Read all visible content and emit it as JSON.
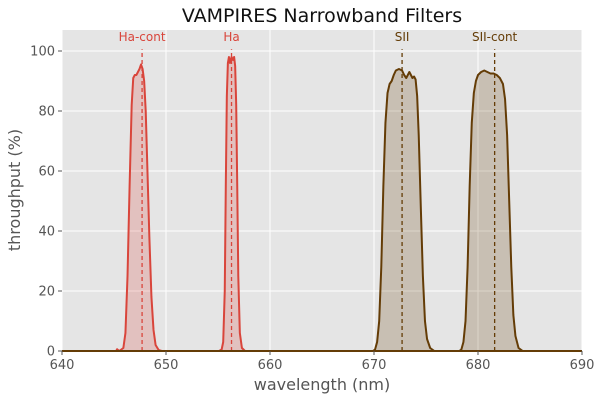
{
  "chart_data": {
    "type": "area",
    "title": "VAMPIRES Narrowband Filters",
    "xlabel": "wavelength (nm)",
    "ylabel": "throughput (%)",
    "xlim": [
      640,
      690
    ],
    "ylim": [
      0,
      107
    ],
    "xticks": [
      640,
      650,
      660,
      670,
      680,
      690
    ],
    "yticks": [
      0,
      20,
      40,
      60,
      80,
      100
    ],
    "grid": true,
    "legend": "none",
    "colors": {
      "background": "#e5e5e5",
      "grid": "#ffffff",
      "red": "#d9453b",
      "brown": "#643c06"
    },
    "series": [
      {
        "label": "Ha-cont",
        "color": "red",
        "center": 647.7,
        "points": [
          [
            640,
            0
          ],
          [
            645.2,
            0
          ],
          [
            645.3,
            0.6
          ],
          [
            645.5,
            0
          ],
          [
            645.9,
            1
          ],
          [
            646.1,
            6
          ],
          [
            646.3,
            25
          ],
          [
            646.5,
            55
          ],
          [
            646.7,
            82
          ],
          [
            646.85,
            91
          ],
          [
            647.0,
            92
          ],
          [
            647.15,
            92
          ],
          [
            647.3,
            93
          ],
          [
            647.45,
            94
          ],
          [
            647.6,
            95.5
          ],
          [
            647.75,
            94
          ],
          [
            647.9,
            90
          ],
          [
            648.05,
            80
          ],
          [
            648.2,
            62
          ],
          [
            648.4,
            38
          ],
          [
            648.6,
            18
          ],
          [
            648.8,
            7
          ],
          [
            649.0,
            2
          ],
          [
            649.3,
            0.3
          ],
          [
            649.6,
            0
          ],
          [
            690,
            0
          ]
        ]
      },
      {
        "label": "Ha",
        "color": "red",
        "center": 656.3,
        "points": [
          [
            640,
            0
          ],
          [
            655.1,
            0
          ],
          [
            655.35,
            0.5
          ],
          [
            655.5,
            3
          ],
          [
            655.65,
            20
          ],
          [
            655.75,
            55
          ],
          [
            655.85,
            85
          ],
          [
            655.95,
            96
          ],
          [
            656.05,
            98
          ],
          [
            656.15,
            96
          ],
          [
            656.3,
            98
          ],
          [
            656.45,
            97
          ],
          [
            656.55,
            98
          ],
          [
            656.65,
            95
          ],
          [
            656.75,
            82
          ],
          [
            656.85,
            55
          ],
          [
            656.95,
            25
          ],
          [
            657.1,
            6
          ],
          [
            657.3,
            1
          ],
          [
            657.6,
            0
          ],
          [
            690,
            0
          ]
        ]
      },
      {
        "label": "SII",
        "color": "brown",
        "center": 672.7,
        "points": [
          [
            640,
            0
          ],
          [
            669.9,
            0
          ],
          [
            670.1,
            0.5
          ],
          [
            670.3,
            3
          ],
          [
            670.5,
            10
          ],
          [
            670.7,
            28
          ],
          [
            670.9,
            55
          ],
          [
            671.1,
            76
          ],
          [
            671.3,
            86
          ],
          [
            671.5,
            89
          ],
          [
            671.7,
            90
          ],
          [
            671.9,
            92
          ],
          [
            672.1,
            93.5
          ],
          [
            672.4,
            94
          ],
          [
            672.7,
            93.5
          ],
          [
            672.9,
            92
          ],
          [
            673.1,
            91
          ],
          [
            673.25,
            92
          ],
          [
            673.4,
            93
          ],
          [
            673.55,
            92
          ],
          [
            673.7,
            91
          ],
          [
            673.85,
            91.5
          ],
          [
            674.0,
            90.5
          ],
          [
            674.15,
            85
          ],
          [
            674.3,
            72
          ],
          [
            674.5,
            48
          ],
          [
            674.7,
            25
          ],
          [
            674.9,
            10
          ],
          [
            675.1,
            4
          ],
          [
            675.4,
            1
          ],
          [
            675.8,
            0
          ],
          [
            690,
            0
          ]
        ]
      },
      {
        "label": "SII-cont",
        "color": "brown",
        "center": 681.6,
        "points": [
          [
            640,
            0
          ],
          [
            678.2,
            0
          ],
          [
            678.4,
            0.5
          ],
          [
            678.6,
            3
          ],
          [
            678.8,
            10
          ],
          [
            679.0,
            28
          ],
          [
            679.2,
            55
          ],
          [
            679.4,
            76
          ],
          [
            679.6,
            86
          ],
          [
            679.8,
            90
          ],
          [
            680.0,
            92
          ],
          [
            680.3,
            93
          ],
          [
            680.6,
            93.5
          ],
          [
            680.9,
            93
          ],
          [
            681.2,
            92.5
          ],
          [
            681.5,
            92.5
          ],
          [
            681.8,
            92
          ],
          [
            682.1,
            91
          ],
          [
            682.4,
            89
          ],
          [
            682.6,
            84
          ],
          [
            682.8,
            72
          ],
          [
            683.0,
            50
          ],
          [
            683.2,
            28
          ],
          [
            683.4,
            12
          ],
          [
            683.6,
            5
          ],
          [
            683.9,
            1
          ],
          [
            684.3,
            0
          ],
          [
            690,
            0
          ]
        ]
      }
    ]
  }
}
